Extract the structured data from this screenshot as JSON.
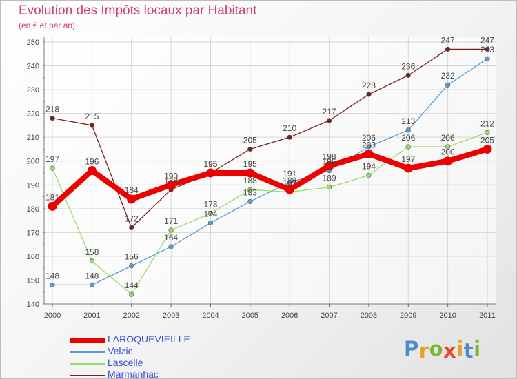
{
  "header": {
    "title": "Evolution des Impôts locaux par Habitant",
    "subtitle": "(en € et par an)"
  },
  "brand": {
    "text": "Proxiti",
    "letter_colors": [
      "#4a8bd0",
      "#e8a020",
      "#79b83a",
      "#e34b2a",
      "#e8a020",
      "#4a8bd0",
      "#79b83a"
    ]
  },
  "chart_data": {
    "type": "line",
    "title": "Evolution des Impôts locaux par Habitant",
    "subtitle": "(en € et par an)",
    "xlabel": "",
    "ylabel": "",
    "categories": [
      "2000",
      "2001",
      "2002",
      "2003",
      "2004",
      "2005",
      "2006",
      "2007",
      "2008",
      "2009",
      "2010",
      "2011"
    ],
    "ylim": [
      140,
      250
    ],
    "yticks": [
      140,
      150,
      160,
      170,
      180,
      190,
      200,
      210,
      220,
      230,
      240,
      250
    ],
    "grid": true,
    "legend_position": "bottom-left",
    "series": [
      {
        "name": "LAROQUEVIEILLE",
        "color": "#ee0000",
        "emphasis": true,
        "values": [
          181,
          196,
          184,
          190,
          195,
          195,
          188,
          198,
          203,
          197,
          200,
          205
        ]
      },
      {
        "name": "Velzic",
        "color": "#5a9bd5",
        "emphasis": false,
        "values": [
          148,
          148,
          156,
          164,
          174,
          183,
          191,
          196,
          206,
          213,
          232,
          243
        ]
      },
      {
        "name": "Lascelle",
        "color": "#99dd66",
        "emphasis": false,
        "values": [
          197,
          158,
          144,
          171,
          178,
          188,
          187,
          189,
          194,
          206,
          206,
          212
        ]
      },
      {
        "name": "Marmanhac",
        "color": "#7a2020",
        "emphasis": false,
        "values": [
          218,
          215,
          172,
          188,
          195,
          205,
          210,
          217,
          228,
          236,
          247,
          247
        ]
      }
    ]
  }
}
